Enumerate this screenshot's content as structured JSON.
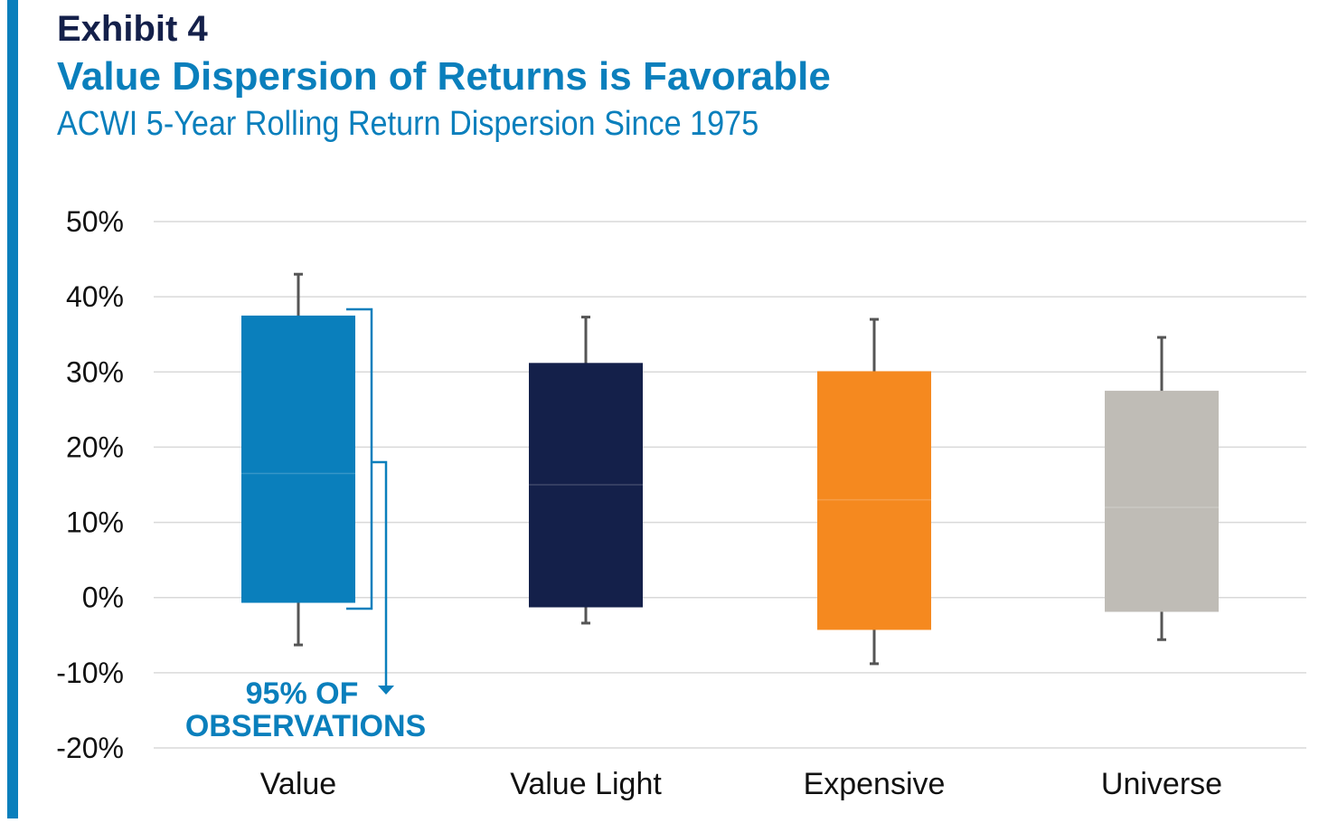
{
  "header": {
    "exhibit": "Exhibit 4",
    "title": "Value Dispersion of Returns is Favorable",
    "subtitle": "ACWI 5-Year Rolling Return Dispersion Since 1975"
  },
  "colors": {
    "accent": "#0a7fbc",
    "navy": "#14204a",
    "grid": "#d9d9d9",
    "whisker": "#555555"
  },
  "annotation": {
    "line1": "95% OF",
    "line2": "OBSERVATIONS"
  },
  "chart_data": {
    "type": "box",
    "title": "Value Dispersion of Returns is Favorable",
    "subtitle": "ACWI 5-Year Rolling Return Dispersion Since 1975",
    "ylim": [
      -20,
      50
    ],
    "yticks": [
      50,
      40,
      30,
      20,
      10,
      0,
      -10,
      -20
    ],
    "ytick_labels": [
      "50%",
      "40%",
      "30%",
      "20%",
      "10%",
      "0%",
      "-10%",
      "-20%"
    ],
    "grid": true,
    "legend": "none",
    "categories": [
      "Value",
      "Value Light",
      "Expensive",
      "Universe"
    ],
    "series": [
      {
        "category": "Value",
        "whisker_high": 43,
        "box_high": 37.5,
        "median": 16.5,
        "box_low": -0.7,
        "whisker_low": -6.3,
        "color": "#0a7fbc"
      },
      {
        "category": "Value Light",
        "whisker_high": 37.3,
        "box_high": 31.2,
        "median": 15,
        "box_low": -1.3,
        "whisker_low": -3.4,
        "color": "#14204a"
      },
      {
        "category": "Expensive",
        "whisker_high": 37,
        "box_high": 30.1,
        "median": 13,
        "box_low": -4.3,
        "whisker_low": -8.8,
        "color": "#f5891f"
      },
      {
        "category": "Universe",
        "whisker_high": 34.6,
        "box_high": 27.5,
        "median": 12,
        "box_low": -1.9,
        "whisker_low": -5.6,
        "color": "#bfbcb6"
      }
    ]
  }
}
